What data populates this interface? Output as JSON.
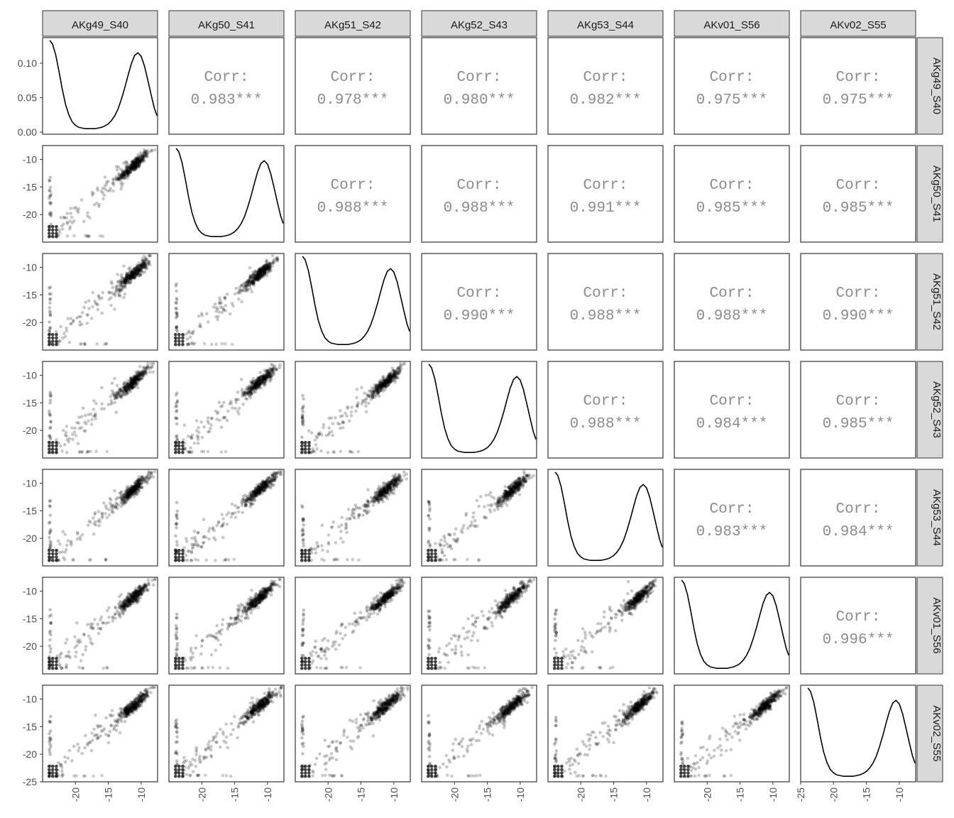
{
  "chart_data": {
    "type": "scatter-matrix",
    "variables": [
      "AKg49_S40",
      "AKg50_S41",
      "AKg51_S42",
      "AKg52_S43",
      "AKg53_S44",
      "AKv01_S56",
      "AKv02_S55"
    ],
    "corr_label": "Corr:",
    "correlations": [
      [
        "",
        "0.983***",
        "0.978***",
        "0.980***",
        "0.982***",
        "0.975***",
        "0.975***"
      ],
      [
        "",
        "",
        "0.988***",
        "0.988***",
        "0.991***",
        "0.985***",
        "0.985***"
      ],
      [
        "",
        "",
        "",
        "0.990***",
        "0.988***",
        "0.988***",
        "0.990***"
      ],
      [
        "",
        "",
        "",
        "",
        "0.988***",
        "0.984***",
        "0.985***"
      ],
      [
        "",
        "",
        "",
        "",
        "",
        "0.983***",
        "0.984***"
      ],
      [
        "",
        "",
        "",
        "",
        "",
        "",
        "0.996***"
      ],
      [
        "",
        "",
        "",
        "",
        "",
        "",
        ""
      ]
    ],
    "density_y_ticks": [
      0.0,
      0.05,
      0.1
    ],
    "density_y_tick_labels": [
      "0.00",
      "0.05",
      "0.10"
    ],
    "density_ylim": [
      -0.003,
      0.137
    ],
    "axis_ticks": [
      -25,
      -20,
      -15,
      -10
    ],
    "y_tick_labels": [
      "-25",
      "-20",
      "-15",
      "-10"
    ],
    "x_tick_labels": [
      "-25",
      "-20",
      "-15",
      "-10"
    ],
    "axis_range": [
      -25,
      -7.5
    ],
    "density_curve": {
      "x": [
        -23.9,
        -23.5,
        -23.0,
        -22.5,
        -22.0,
        -21.5,
        -21.0,
        -20.5,
        -20.0,
        -19.5,
        -19.0,
        -18.5,
        -18.0,
        -17.5,
        -17.0,
        -16.5,
        -16.0,
        -15.5,
        -15.0,
        -14.5,
        -14.0,
        -13.5,
        -13.0,
        -12.5,
        -12.0,
        -11.5,
        -11.0,
        -10.5,
        -10.0,
        -9.5,
        -9.0,
        -8.5,
        -8.0,
        -7.6
      ],
      "y": [
        0.133,
        0.128,
        0.112,
        0.088,
        0.062,
        0.04,
        0.025,
        0.015,
        0.01,
        0.007,
        0.006,
        0.005,
        0.005,
        0.005,
        0.005,
        0.006,
        0.007,
        0.009,
        0.012,
        0.017,
        0.024,
        0.034,
        0.048,
        0.064,
        0.082,
        0.099,
        0.111,
        0.115,
        0.11,
        0.096,
        0.076,
        0.055,
        0.035,
        0.024
      ]
    }
  }
}
